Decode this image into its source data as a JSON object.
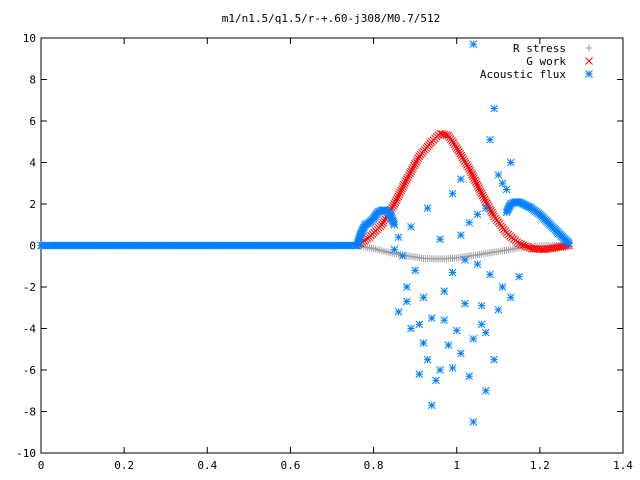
{
  "chart_data": {
    "type": "scatter",
    "title": "m1/n1.5/q1.5/r-+.60-j308/M0.7/512",
    "xlabel": "",
    "ylabel": "",
    "xlim": [
      0,
      1.4
    ],
    "ylim": [
      -10,
      10
    ],
    "x_ticks": [
      "0",
      "0.2",
      "0.4",
      "0.6",
      "0.8",
      "1",
      "1.2",
      "1.4"
    ],
    "y_ticks": [
      "10",
      "8",
      "6",
      "4",
      "2",
      "0",
      "-2",
      "-4",
      "-6",
      "-8",
      "-10"
    ],
    "grid": false,
    "legend_position": "top-right",
    "series": [
      {
        "name": "R stress",
        "color": "#a0a0a0",
        "marker": "plus",
        "points": [
          [
            0.76,
            0.0
          ],
          [
            0.8,
            -0.15
          ],
          [
            0.84,
            -0.35
          ],
          [
            0.88,
            -0.5
          ],
          [
            0.92,
            -0.62
          ],
          [
            0.96,
            -0.65
          ],
          [
            1.0,
            -0.6
          ],
          [
            1.04,
            -0.48
          ],
          [
            1.08,
            -0.35
          ],
          [
            1.12,
            -0.22
          ],
          [
            1.16,
            -0.08
          ],
          [
            1.2,
            -0.02
          ],
          [
            1.24,
            0.0
          ],
          [
            1.27,
            0.0
          ]
        ]
      },
      {
        "name": "G work",
        "color": "#ff0000",
        "marker": "cross",
        "points": [
          [
            0.76,
            0.0
          ],
          [
            0.79,
            0.4
          ],
          [
            0.82,
            1.0
          ],
          [
            0.85,
            2.0
          ],
          [
            0.88,
            3.2
          ],
          [
            0.91,
            4.3
          ],
          [
            0.94,
            5.0
          ],
          [
            0.96,
            5.4
          ],
          [
            0.98,
            5.3
          ],
          [
            1.0,
            4.7
          ],
          [
            1.03,
            3.7
          ],
          [
            1.06,
            2.5
          ],
          [
            1.09,
            1.4
          ],
          [
            1.12,
            0.6
          ],
          [
            1.15,
            0.1
          ],
          [
            1.18,
            -0.15
          ],
          [
            1.21,
            -0.2
          ],
          [
            1.24,
            -0.1
          ],
          [
            1.27,
            0.0
          ]
        ]
      },
      {
        "name": "Acoustic flux",
        "color": "#0080ff",
        "marker": "star",
        "curve_points": [
          [
            0.0,
            0.0
          ],
          [
            0.1,
            0.0
          ],
          [
            0.2,
            0.0
          ],
          [
            0.3,
            0.0
          ],
          [
            0.4,
            0.0
          ],
          [
            0.5,
            0.0
          ],
          [
            0.6,
            0.0
          ],
          [
            0.7,
            0.0
          ],
          [
            0.76,
            0.0
          ],
          [
            0.77,
            0.6
          ],
          [
            0.78,
            1.0
          ],
          [
            0.79,
            1.1
          ],
          [
            0.8,
            1.3
          ],
          [
            0.81,
            1.6
          ],
          [
            0.82,
            1.7
          ],
          [
            0.83,
            1.7
          ],
          [
            0.84,
            1.5
          ],
          [
            0.85,
            1.0
          ],
          [
            1.12,
            1.6
          ],
          [
            1.13,
            2.0
          ],
          [
            1.14,
            2.1
          ],
          [
            1.15,
            2.1
          ],
          [
            1.16,
            2.0
          ],
          [
            1.18,
            1.8
          ],
          [
            1.2,
            1.5
          ],
          [
            1.22,
            1.1
          ],
          [
            1.24,
            0.7
          ],
          [
            1.26,
            0.3
          ],
          [
            1.27,
            0.1
          ]
        ],
        "scatter_points": [
          [
            1.04,
            9.7
          ],
          [
            1.09,
            6.6
          ],
          [
            1.08,
            5.1
          ],
          [
            1.13,
            4.0
          ],
          [
            1.1,
            3.4
          ],
          [
            1.12,
            2.7
          ],
          [
            1.05,
            1.5
          ],
          [
            1.01,
            0.5
          ],
          [
            0.93,
            1.8
          ],
          [
            0.89,
            0.9
          ],
          [
            0.87,
            -0.5
          ],
          [
            0.9,
            -1.2
          ],
          [
            0.88,
            -2.0
          ],
          [
            0.92,
            -2.5
          ],
          [
            0.86,
            -3.2
          ],
          [
            0.89,
            -4.0
          ],
          [
            0.91,
            -3.8
          ],
          [
            0.94,
            -3.5
          ],
          [
            0.97,
            -2.2
          ],
          [
            0.99,
            -1.3
          ],
          [
            1.02,
            -2.8
          ],
          [
            1.06,
            -3.8
          ],
          [
            1.04,
            -4.5
          ],
          [
            1.01,
            -5.2
          ],
          [
            0.98,
            -4.8
          ],
          [
            0.96,
            -6.0
          ],
          [
            0.93,
            -5.5
          ],
          [
            0.91,
            -6.2
          ],
          [
            0.95,
            -6.5
          ],
          [
            0.99,
            -5.9
          ],
          [
            1.03,
            -6.3
          ],
          [
            1.07,
            -4.2
          ],
          [
            1.1,
            -3.1
          ],
          [
            1.13,
            -2.5
          ],
          [
            1.15,
            -1.5
          ],
          [
            1.08,
            -1.4
          ],
          [
            1.05,
            -0.9
          ],
          [
            1.02,
            -0.7
          ],
          [
            0.94,
            -7.7
          ],
          [
            1.04,
            -8.5
          ],
          [
            1.07,
            -7.0
          ],
          [
            0.92,
            -4.7
          ],
          [
            0.97,
            -3.6
          ],
          [
            1.0,
            -4.1
          ],
          [
            1.06,
            -2.9
          ],
          [
            1.09,
            -5.5
          ],
          [
            1.11,
            -2.0
          ],
          [
            0.88,
            -2.7
          ],
          [
            0.85,
            -0.2
          ],
          [
            0.86,
            0.4
          ],
          [
            0.96,
            0.3
          ],
          [
            1.03,
            1.1
          ],
          [
            1.07,
            1.8
          ],
          [
            1.11,
            3.0
          ],
          [
            1.01,
            3.2
          ],
          [
            0.99,
            2.5
          ]
        ]
      }
    ]
  }
}
